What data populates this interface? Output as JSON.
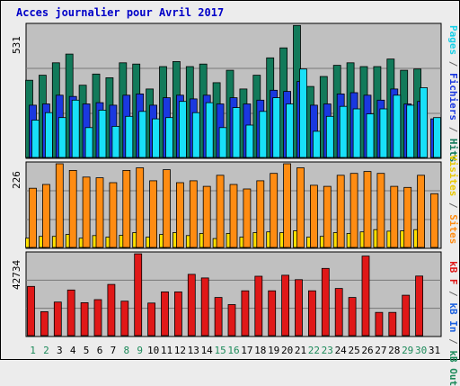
{
  "title": "Acces journalier pour Avril 2017",
  "colors": {
    "title": "#0000c8",
    "frame_bg": "#c0c0c0",
    "outer_bg": "#ececec",
    "hits": "#127a5a",
    "files": "#1a38e0",
    "pages": "#18e0f8",
    "visits": "#ffe000",
    "sites": "#ff8c12",
    "kb_f": "#e01818",
    "weekend_day": "#1c8a5a",
    "weekday_day": "#000000"
  },
  "right_labels": {
    "panel1": {
      "pages": "Pages",
      "sep1": " / ",
      "files": "Fichiers",
      "sep2": " / ",
      "hits": "Hits"
    },
    "panel2": {
      "visits": "Visites",
      "sep": " / ",
      "sites": "Sites"
    },
    "panel3": {
      "kbf": "kB F",
      "sep1": " / ",
      "kbin": "kB In",
      "sep2": " / ",
      "kbout": "kB Out"
    }
  },
  "chart_data": [
    {
      "type": "bar",
      "panel": "hits-files-pages",
      "y_max_label": "531",
      "ylim": [
        0,
        531
      ],
      "categories": [
        "1",
        "2",
        "3",
        "4",
        "5",
        "6",
        "7",
        "8",
        "9",
        "10",
        "11",
        "12",
        "13",
        "14",
        "15",
        "16",
        "17",
        "18",
        "19",
        "20",
        "21",
        "22",
        "23",
        "24",
        "25",
        "26",
        "27",
        "28",
        "29",
        "30",
        "31"
      ],
      "series": [
        {
          "name": "Hits",
          "values": [
            310,
            330,
            380,
            415,
            290,
            335,
            320,
            380,
            375,
            275,
            365,
            385,
            365,
            375,
            300,
            350,
            275,
            330,
            400,
            440,
            530,
            285,
            325,
            370,
            380,
            365,
            365,
            395,
            350,
            355,
            0
          ]
        },
        {
          "name": "Fichiers",
          "values": [
            210,
            215,
            250,
            245,
            215,
            220,
            210,
            250,
            255,
            210,
            240,
            250,
            235,
            250,
            215,
            240,
            215,
            230,
            270,
            265,
            305,
            210,
            215,
            255,
            260,
            250,
            230,
            275,
            215,
            225,
            155
          ]
        },
        {
          "name": "Pages",
          "values": [
            150,
            180,
            160,
            230,
            120,
            190,
            125,
            165,
            185,
            155,
            160,
            225,
            180,
            220,
            120,
            200,
            130,
            185,
            240,
            215,
            355,
            105,
            165,
            205,
            195,
            175,
            195,
            250,
            210,
            280,
            160
          ]
        }
      ]
    },
    {
      "type": "bar",
      "panel": "visits-sites",
      "y_max_label": "226",
      "ylim": [
        0,
        226
      ],
      "categories": [
        "1",
        "2",
        "3",
        "4",
        "5",
        "6",
        "7",
        "8",
        "9",
        "10",
        "11",
        "12",
        "13",
        "14",
        "15",
        "16",
        "17",
        "18",
        "19",
        "20",
        "21",
        "22",
        "23",
        "24",
        "25",
        "26",
        "27",
        "28",
        "29",
        "30",
        "31"
      ],
      "series": [
        {
          "name": "Visites",
          "values": [
            25,
            30,
            30,
            35,
            25,
            32,
            28,
            33,
            40,
            28,
            35,
            40,
            32,
            38,
            24,
            38,
            28,
            40,
            42,
            40,
            45,
            28,
            30,
            40,
            38,
            42,
            48,
            44,
            45,
            48,
            0
          ]
        },
        {
          "name": "Sites",
          "values": [
            160,
            170,
            226,
            208,
            190,
            188,
            175,
            208,
            215,
            180,
            210,
            175,
            180,
            165,
            195,
            170,
            158,
            180,
            200,
            226,
            215,
            168,
            165,
            195,
            200,
            205,
            200,
            165,
            162,
            195,
            145
          ]
        }
      ]
    },
    {
      "type": "bar",
      "panel": "kbf",
      "y_max_label": "42734",
      "ylim": [
        0,
        42734
      ],
      "categories": [
        "1",
        "2",
        "3",
        "4",
        "5",
        "6",
        "7",
        "8",
        "9",
        "10",
        "11",
        "12",
        "13",
        "14",
        "15",
        "16",
        "17",
        "18",
        "19",
        "20",
        "21",
        "22",
        "23",
        "24",
        "25",
        "26",
        "27",
        "28",
        "29",
        "30",
        "31"
      ],
      "series": [
        {
          "name": "kB F",
          "values": [
            25700,
            12500,
            17500,
            23800,
            17200,
            18800,
            26700,
            18000,
            42700,
            17000,
            22800,
            22800,
            32000,
            30100,
            19900,
            16200,
            23400,
            31000,
            23400,
            31500,
            29200,
            23400,
            35100,
            24600,
            19900,
            41500,
            12100,
            12100,
            21100,
            31100,
            0
          ]
        }
      ]
    }
  ]
}
